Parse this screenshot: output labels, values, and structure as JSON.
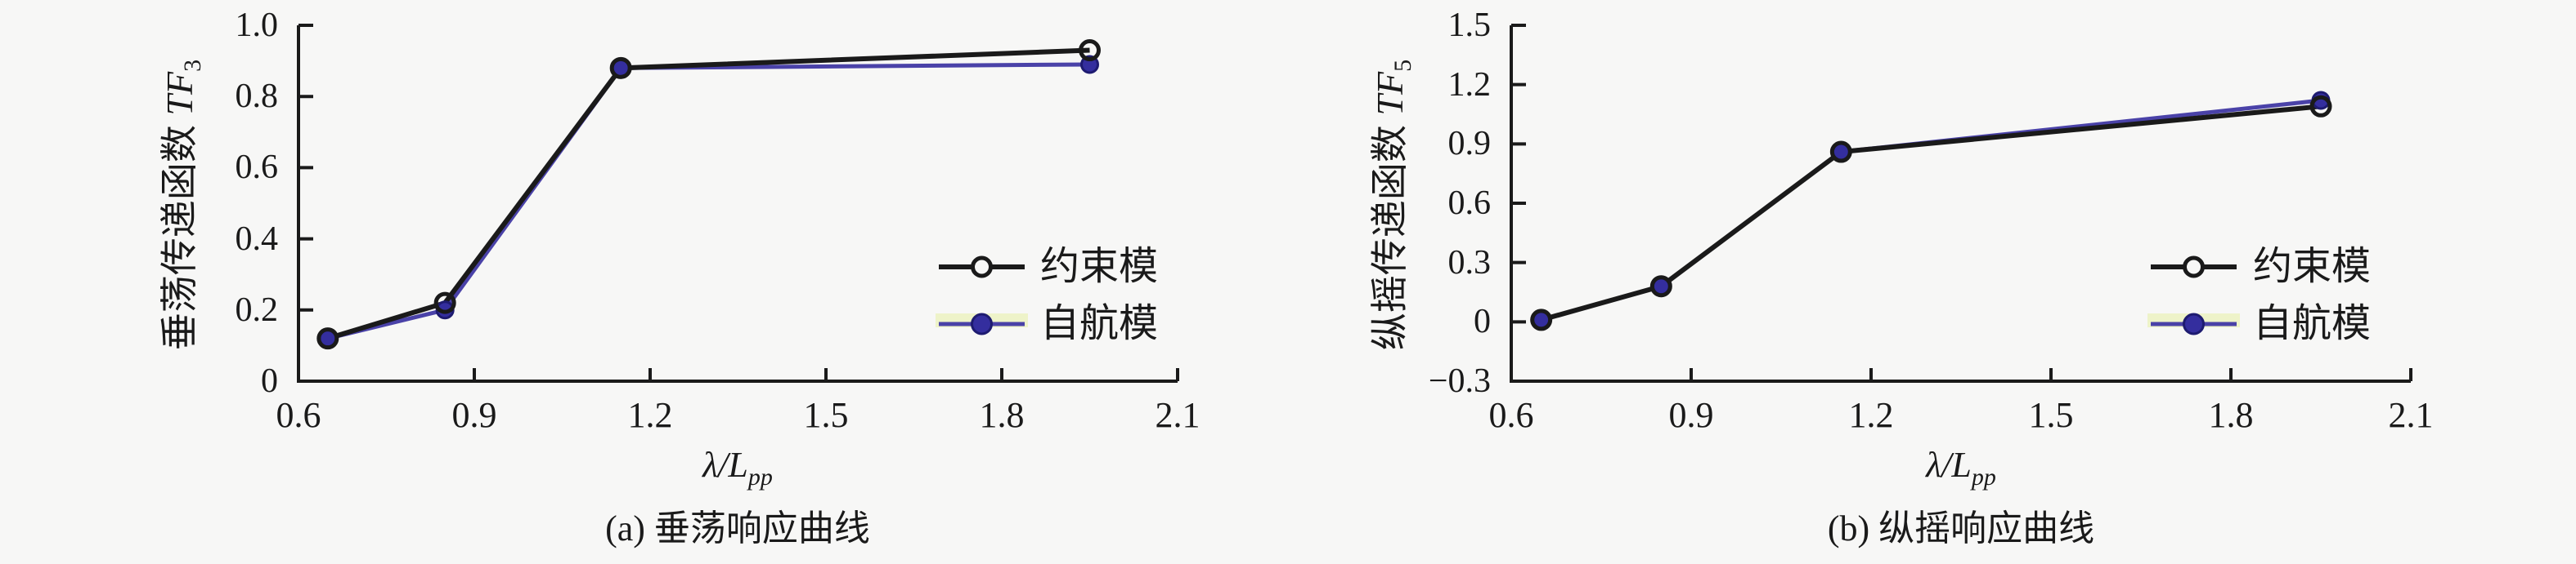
{
  "page": {
    "background": "#f7f7f6",
    "text_color": "#1a1a1a"
  },
  "colors": {
    "axis": "#1a1a1a",
    "constrained_line": "#1a1a1a",
    "self_propelled_line": "#4a42a8",
    "self_propelled_marker": "#342e9e",
    "self_propelled_marker_edge": "#1e1b70",
    "legend_highlight": "#eef3c9",
    "open_marker_fill": "#f7f7f6"
  },
  "chart_data": [
    {
      "id": "heave-response",
      "type": "line",
      "title": "(a) 垂荡响应曲线",
      "ylabel_prefix": "垂荡传递函数 ",
      "ylabel_var": "TF",
      "ylabel_sub": "3",
      "xlabel_var": "λ/L",
      "xlabel_sub": "pp",
      "x": [
        0.65,
        0.85,
        1.15,
        1.95
      ],
      "series": [
        {
          "name": "约束模",
          "marker": "open-circle",
          "values": [
            0.12,
            0.22,
            0.88,
            0.93
          ]
        },
        {
          "name": "自航模",
          "marker": "filled-circle",
          "values": [
            0.12,
            0.2,
            0.88,
            0.89
          ]
        }
      ],
      "xlim": [
        0.6,
        2.1
      ],
      "ylim": [
        0,
        1.0
      ],
      "xticks": [
        "0.6",
        "0.9",
        "1.2",
        "1.5",
        "1.8",
        "2.1"
      ],
      "yticks": [
        "0",
        "0.2",
        "0.4",
        "0.6",
        "0.8",
        "1.0"
      ],
      "grid": "off",
      "legend_position": "inside-right-middle"
    },
    {
      "id": "pitch-response",
      "type": "line",
      "title": "(b) 纵摇响应曲线",
      "ylabel_prefix": "纵摇传递函数 ",
      "ylabel_var": "TF",
      "ylabel_sub": "5",
      "xlabel_var": "λ/L",
      "xlabel_sub": "pp",
      "x": [
        0.65,
        0.85,
        1.15,
        1.95
      ],
      "series": [
        {
          "name": "约束模",
          "marker": "open-circle",
          "values": [
            0.01,
            0.18,
            0.86,
            1.09
          ]
        },
        {
          "name": "自航模",
          "marker": "filled-circle",
          "values": [
            0.01,
            0.18,
            0.86,
            1.12
          ]
        }
      ],
      "xlim": [
        0.6,
        2.1
      ],
      "ylim": [
        -0.3,
        1.5
      ],
      "xticks": [
        "0.6",
        "0.9",
        "1.2",
        "1.5",
        "1.8",
        "2.1"
      ],
      "yticks": [
        "−0.3",
        "0",
        "0.3",
        "0.6",
        "0.9",
        "1.2",
        "1.5"
      ],
      "grid": "off",
      "legend_position": "inside-right-middle"
    }
  ]
}
